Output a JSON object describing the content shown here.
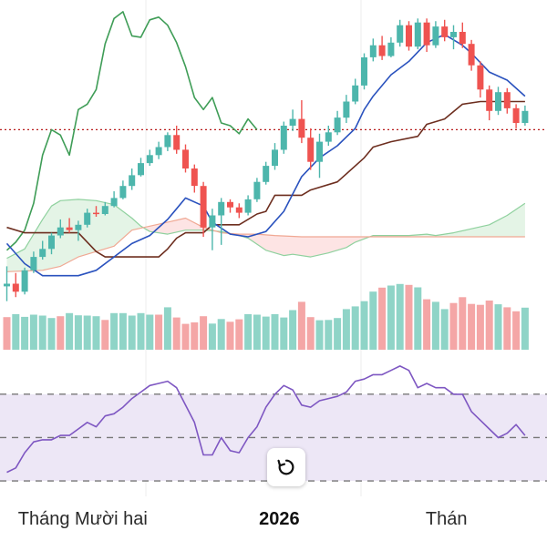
{
  "chart_data": {
    "type": "candlestick",
    "panels": [
      "price",
      "volume",
      "rsi"
    ],
    "colors": {
      "up": "#4db6ac",
      "down": "#ef5350",
      "volume_up": "#8fd4c7",
      "volume_down": "#f4a6a6",
      "conversion_line": "#2a52be",
      "base_line": "#6d2e1f",
      "lagging_span": "#3f9d57",
      "leading_span_a": "#8fd19e",
      "leading_span_b": "#f0a893",
      "cloud_bullish": "#e4f4e6",
      "cloud_bearish": "#fde4e4",
      "rsi_line": "#7e57c2",
      "rsi_band": "#ede7f6",
      "reference_line": "#b71c1c"
    },
    "x_tick_labels": [
      "Tháng Mười hai",
      "2026",
      "Thán"
    ],
    "x_tick_label_bold": [
      false,
      true,
      false
    ],
    "x_tick_label_index": [
      8.5,
      30.5,
      49.2
    ],
    "candles": [
      [
        110,
        0.8,
        2.3,
        -0.3,
        1.0
      ],
      [
        111,
        1.0,
        1.8,
        0.0,
        0.4
      ],
      [
        112,
        0.4,
        2.2,
        0.2,
        2.0
      ],
      [
        113,
        2.0,
        3.4,
        1.8,
        3.0
      ],
      [
        114,
        3.0,
        4.2,
        2.8,
        3.6
      ],
      [
        115,
        3.6,
        4.8,
        3.2,
        4.6
      ],
      [
        116,
        4.6,
        5.8,
        4.4,
        5.2
      ],
      [
        117,
        5.2,
        5.9,
        4.8,
        5.0
      ],
      [
        118,
        5.0,
        5.7,
        4.2,
        5.4
      ],
      [
        119,
        5.4,
        6.6,
        5.2,
        6.3
      ],
      [
        120,
        6.3,
        6.8,
        6.0,
        6.2
      ],
      [
        121,
        6.2,
        7.1,
        6.1,
        6.8
      ],
      [
        122,
        6.8,
        7.9,
        6.7,
        7.4
      ],
      [
        123,
        7.4,
        8.7,
        7.3,
        8.3
      ],
      [
        124,
        8.3,
        9.6,
        8.0,
        9.1
      ],
      [
        125,
        9.1,
        10.4,
        9.0,
        10.0
      ],
      [
        126,
        10.0,
        11.0,
        9.8,
        10.6
      ],
      [
        127,
        10.6,
        11.6,
        10.3,
        11.2
      ],
      [
        128,
        11.2,
        12.3,
        10.9,
        12.1
      ],
      [
        129,
        12.1,
        12.8,
        10.7,
        11.0
      ],
      [
        130,
        11.0,
        11.4,
        9.3,
        9.6
      ],
      [
        131,
        9.6,
        9.9,
        7.8,
        8.3
      ],
      [
        132,
        8.3,
        8.6,
        4.5,
        5.2
      ],
      [
        133,
        5.2,
        6.6,
        3.5,
        6.1
      ],
      [
        134,
        6.1,
        7.4,
        3.9,
        7.1
      ],
      [
        135,
        7.1,
        7.3,
        6.3,
        6.7
      ],
      [
        136,
        6.7,
        7.0,
        5.9,
        6.3
      ],
      [
        137,
        6.3,
        7.6,
        6.1,
        7.3
      ],
      [
        138,
        7.3,
        8.9,
        7.1,
        8.6
      ],
      [
        139,
        8.6,
        10.1,
        8.4,
        9.8
      ],
      [
        140,
        9.8,
        11.5,
        9.5,
        11.0
      ],
      [
        141,
        11.0,
        13.1,
        10.7,
        12.8
      ],
      [
        142,
        12.8,
        14.0,
        12.4,
        13.3
      ],
      [
        143,
        13.3,
        14.7,
        11.5,
        11.9
      ],
      [
        144,
        11.9,
        12.6,
        9.5,
        10.1
      ],
      [
        145,
        10.1,
        12.2,
        8.9,
        11.6
      ],
      [
        146,
        11.6,
        12.8,
        11.3,
        12.3
      ],
      [
        147,
        12.3,
        13.9,
        12.1,
        13.4
      ],
      [
        148,
        13.4,
        15.1,
        13.0,
        14.6
      ],
      [
        149,
        14.6,
        16.3,
        14.4,
        15.8
      ],
      [
        150,
        15.8,
        18.2,
        15.5,
        17.9
      ],
      [
        151,
        17.9,
        19.3,
        17.6,
        18.8
      ],
      [
        152,
        18.8,
        19.5,
        17.7,
        18.0
      ],
      [
        153,
        18.0,
        19.4,
        17.9,
        19.0
      ],
      [
        154,
        19.0,
        20.7,
        18.7,
        20.3
      ],
      [
        155,
        20.3,
        20.6,
        18.4,
        18.7
      ],
      [
        156,
        18.7,
        20.8,
        18.5,
        20.5
      ],
      [
        157,
        20.5,
        20.8,
        18.3,
        18.8
      ],
      [
        158,
        18.8,
        20.6,
        18.6,
        20.2
      ],
      [
        159,
        20.2,
        20.7,
        19.1,
        19.4
      ],
      [
        160,
        19.4,
        20.3,
        18.5,
        19.8
      ],
      [
        161,
        19.8,
        20.5,
        18.6,
        18.9
      ],
      [
        162,
        18.9,
        19.2,
        16.9,
        17.3
      ],
      [
        163,
        17.3,
        17.6,
        14.9,
        15.5
      ],
      [
        164,
        15.5,
        15.8,
        13.2,
        13.9
      ],
      [
        165,
        13.9,
        15.7,
        13.6,
        15.3
      ],
      [
        166,
        15.3,
        15.6,
        13.7,
        14.1
      ],
      [
        167,
        14.1,
        14.4,
        12.6,
        13.0
      ],
      [
        168,
        13.0,
        14.3,
        12.8,
        13.9
      ]
    ],
    "candle_fields": [
      "x",
      "open",
      "high",
      "low",
      "close"
    ],
    "price_ylim": [
      -0.8,
      21.5
    ],
    "reference_level": 12.5,
    "conversion_line": [
      [
        110,
        4.0
      ],
      [
        112,
        2.5
      ],
      [
        114,
        1.6
      ],
      [
        116,
        1.6
      ],
      [
        118,
        1.6
      ],
      [
        120,
        2.0
      ],
      [
        122,
        3.0
      ],
      [
        124,
        4.0
      ],
      [
        126,
        4.6
      ],
      [
        128,
        5.8
      ],
      [
        129,
        6.6
      ],
      [
        130,
        7.4
      ],
      [
        132,
        6.8
      ],
      [
        133,
        5.6
      ],
      [
        135,
        4.7
      ],
      [
        137,
        4.5
      ],
      [
        139,
        4.9
      ],
      [
        141,
        6.4
      ],
      [
        143,
        9.0
      ],
      [
        145,
        10.4
      ],
      [
        147,
        11.3
      ],
      [
        149,
        12.6
      ],
      [
        150,
        14.0
      ],
      [
        151,
        15.0
      ],
      [
        153,
        16.6
      ],
      [
        155,
        17.6
      ],
      [
        157,
        19.0
      ],
      [
        159,
        19.6
      ],
      [
        161,
        18.8
      ],
      [
        162,
        18.2
      ],
      [
        164,
        16.8
      ],
      [
        166,
        16.2
      ],
      [
        168,
        15.0
      ]
    ],
    "base_line": [
      [
        110,
        5.2
      ],
      [
        112,
        4.8
      ],
      [
        115,
        4.8
      ],
      [
        118,
        4.8
      ],
      [
        120,
        3.4
      ],
      [
        121,
        3.0
      ],
      [
        126,
        3.0
      ],
      [
        127,
        3.0
      ],
      [
        128,
        3.6
      ],
      [
        129,
        4.4
      ],
      [
        130,
        4.8
      ],
      [
        132,
        4.8
      ],
      [
        133,
        5.4
      ],
      [
        136,
        5.4
      ],
      [
        138,
        6.2
      ],
      [
        139,
        6.4
      ],
      [
        140,
        7.6
      ],
      [
        143,
        7.6
      ],
      [
        144,
        8.0
      ],
      [
        147,
        8.6
      ],
      [
        150,
        10.4
      ],
      [
        151,
        11.2
      ],
      [
        153,
        11.6
      ],
      [
        156,
        12.0
      ],
      [
        157,
        12.9
      ],
      [
        159,
        13.3
      ],
      [
        161,
        14.4
      ],
      [
        163,
        14.6
      ],
      [
        168,
        14.6
      ]
    ],
    "lagging_span": [
      [
        110,
        3.5
      ],
      [
        111,
        4.1
      ],
      [
        112,
        5.0
      ],
      [
        113,
        7.0
      ],
      [
        114,
        10.6
      ],
      [
        115,
        12.5
      ],
      [
        116,
        12.1
      ],
      [
        117,
        10.6
      ],
      [
        118,
        14.0
      ],
      [
        119,
        14.4
      ],
      [
        120,
        15.5
      ],
      [
        121,
        18.9
      ],
      [
        122,
        20.8
      ],
      [
        123,
        21.3
      ],
      [
        124,
        19.5
      ],
      [
        125,
        19.4
      ],
      [
        126,
        20.7
      ],
      [
        127,
        20.9
      ],
      [
        128,
        20.3
      ],
      [
        129,
        19.0
      ],
      [
        130,
        17.2
      ],
      [
        131,
        14.9
      ],
      [
        132,
        14.0
      ],
      [
        133,
        14.9
      ],
      [
        134,
        13.0
      ],
      [
        135,
        12.8
      ],
      [
        136,
        12.2
      ],
      [
        137,
        13.3
      ],
      [
        138,
        12.5
      ]
    ],
    "leading_span_a": [
      [
        110,
        2.9
      ],
      [
        112,
        3.6
      ],
      [
        114,
        5.8
      ],
      [
        115,
        6.8
      ],
      [
        116,
        7.2
      ],
      [
        118,
        7.3
      ],
      [
        120,
        7.2
      ],
      [
        122,
        6.9
      ],
      [
        124,
        5.9
      ],
      [
        125,
        5.3
      ],
      [
        126,
        4.9
      ],
      [
        128,
        4.7
      ],
      [
        130,
        5.0
      ],
      [
        132,
        5.0
      ],
      [
        134,
        4.9
      ],
      [
        136,
        4.6
      ],
      [
        137,
        4.4
      ],
      [
        139,
        3.5
      ],
      [
        141,
        3.1
      ],
      [
        142,
        3.2
      ],
      [
        144,
        3.0
      ],
      [
        146,
        3.3
      ],
      [
        148,
        3.7
      ],
      [
        149,
        4.1
      ],
      [
        151,
        4.6
      ],
      [
        153,
        4.6
      ],
      [
        155,
        4.6
      ],
      [
        157,
        4.7
      ],
      [
        158,
        4.6
      ],
      [
        160,
        4.8
      ],
      [
        162,
        5.1
      ],
      [
        164,
        5.4
      ],
      [
        166,
        6.1
      ],
      [
        168,
        7.0
      ]
    ],
    "leading_span_b": [
      [
        110,
        1.9
      ],
      [
        114,
        2.0
      ],
      [
        116,
        2.3
      ],
      [
        118,
        3.0
      ],
      [
        120,
        3.4
      ],
      [
        122,
        3.8
      ],
      [
        124,
        5.0
      ],
      [
        126,
        5.3
      ],
      [
        128,
        5.6
      ],
      [
        130,
        5.9
      ],
      [
        132,
        5.2
      ],
      [
        134,
        4.8
      ],
      [
        136,
        4.7
      ],
      [
        138,
        4.7
      ],
      [
        140,
        4.6
      ],
      [
        143,
        4.5
      ],
      [
        146,
        4.5
      ],
      [
        149,
        4.5
      ],
      [
        152,
        4.5
      ],
      [
        155,
        4.5
      ],
      [
        158,
        4.5
      ],
      [
        161,
        4.5
      ],
      [
        164,
        4.5
      ],
      [
        168,
        4.5
      ]
    ],
    "volume": [
      [
        110,
        1.06,
        "down"
      ],
      [
        111,
        1.16,
        "up"
      ],
      [
        112,
        1.07,
        "up"
      ],
      [
        113,
        1.14,
        "up"
      ],
      [
        114,
        1.11,
        "up"
      ],
      [
        115,
        1.03,
        "up"
      ],
      [
        116,
        1.09,
        "down"
      ],
      [
        117,
        1.19,
        "up"
      ],
      [
        118,
        1.12,
        "up"
      ],
      [
        119,
        1.11,
        "up"
      ],
      [
        120,
        1.09,
        "up"
      ],
      [
        121,
        0.97,
        "down"
      ],
      [
        122,
        1.19,
        "up"
      ],
      [
        123,
        1.19,
        "up"
      ],
      [
        124,
        1.11,
        "up"
      ],
      [
        125,
        1.19,
        "up"
      ],
      [
        126,
        1.14,
        "up"
      ],
      [
        127,
        1.14,
        "down"
      ],
      [
        128,
        1.38,
        "up"
      ],
      [
        129,
        1.05,
        "down"
      ],
      [
        130,
        0.84,
        "down"
      ],
      [
        131,
        0.89,
        "down"
      ],
      [
        132,
        1.09,
        "down"
      ],
      [
        133,
        0.85,
        "up"
      ],
      [
        134,
        1.0,
        "up"
      ],
      [
        135,
        0.91,
        "down"
      ],
      [
        136,
        0.99,
        "down"
      ],
      [
        137,
        1.16,
        "up"
      ],
      [
        138,
        1.14,
        "up"
      ],
      [
        139,
        1.08,
        "up"
      ],
      [
        140,
        1.16,
        "up"
      ],
      [
        141,
        1.05,
        "up"
      ],
      [
        142,
        1.29,
        "up"
      ],
      [
        143,
        1.56,
        "down"
      ],
      [
        144,
        1.06,
        "down"
      ],
      [
        145,
        0.96,
        "up"
      ],
      [
        146,
        0.97,
        "up"
      ],
      [
        147,
        1.03,
        "up"
      ],
      [
        148,
        1.32,
        "up"
      ],
      [
        149,
        1.41,
        "up"
      ],
      [
        150,
        1.58,
        "up"
      ],
      [
        151,
        1.89,
        "up"
      ],
      [
        152,
        2.02,
        "down"
      ],
      [
        153,
        2.09,
        "up"
      ],
      [
        154,
        2.14,
        "up"
      ],
      [
        155,
        2.11,
        "down"
      ],
      [
        156,
        2.03,
        "up"
      ],
      [
        157,
        1.64,
        "down"
      ],
      [
        158,
        1.56,
        "up"
      ],
      [
        159,
        1.32,
        "up"
      ],
      [
        160,
        1.52,
        "down"
      ],
      [
        161,
        1.71,
        "down"
      ],
      [
        162,
        1.49,
        "down"
      ],
      [
        163,
        1.46,
        "down"
      ],
      [
        164,
        1.6,
        "down"
      ],
      [
        165,
        1.48,
        "up"
      ],
      [
        166,
        1.38,
        "down"
      ],
      [
        167,
        1.25,
        "down"
      ],
      [
        168,
        1.37,
        "up"
      ]
    ],
    "volume_ylim": [
      0,
      2.4
    ],
    "rsi": [
      [
        110,
        34
      ],
      [
        111,
        36
      ],
      [
        112,
        43
      ],
      [
        113,
        48
      ],
      [
        114,
        49
      ],
      [
        115,
        49
      ],
      [
        116,
        51
      ],
      [
        117,
        51
      ],
      [
        118,
        54
      ],
      [
        119,
        57
      ],
      [
        120,
        55
      ],
      [
        121,
        60
      ],
      [
        122,
        61
      ],
      [
        123,
        64
      ],
      [
        124,
        68
      ],
      [
        125,
        71
      ],
      [
        126,
        74
      ],
      [
        127,
        75
      ],
      [
        128,
        76
      ],
      [
        129,
        73
      ],
      [
        130,
        65
      ],
      [
        131,
        57
      ],
      [
        132,
        42
      ],
      [
        133,
        42
      ],
      [
        134,
        50
      ],
      [
        135,
        44
      ],
      [
        136,
        43
      ],
      [
        137,
        50
      ],
      [
        138,
        55
      ],
      [
        139,
        64
      ],
      [
        140,
        70
      ],
      [
        141,
        74
      ],
      [
        142,
        72
      ],
      [
        143,
        65
      ],
      [
        144,
        64
      ],
      [
        145,
        67
      ],
      [
        146,
        68
      ],
      [
        147,
        69
      ],
      [
        148,
        71
      ],
      [
        149,
        76
      ],
      [
        150,
        77
      ],
      [
        151,
        79
      ],
      [
        152,
        79
      ],
      [
        153,
        81
      ],
      [
        154,
        83
      ],
      [
        155,
        81
      ],
      [
        156,
        73
      ],
      [
        157,
        75
      ],
      [
        158,
        73
      ],
      [
        159,
        73
      ],
      [
        160,
        70
      ],
      [
        161,
        70
      ],
      [
        162,
        62
      ],
      [
        163,
        58
      ],
      [
        164,
        54
      ],
      [
        165,
        50
      ],
      [
        166,
        52
      ],
      [
        167,
        56
      ],
      [
        168,
        51
      ]
    ],
    "rsi_ylim": [
      25,
      88
    ],
    "rsi_levels": [
      30,
      50,
      70
    ]
  },
  "controls": {
    "reset_icon": "rotate-ccw-icon"
  }
}
